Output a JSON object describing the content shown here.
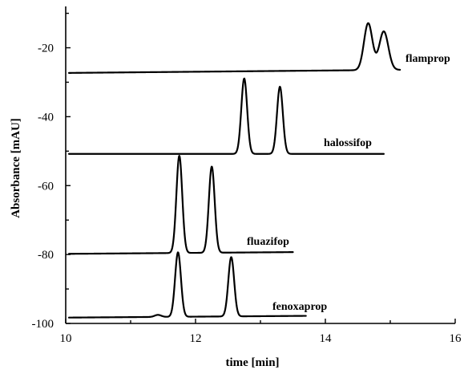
{
  "chart_data": {
    "type": "line",
    "title": "",
    "xlabel": "time [min]",
    "ylabel": "Absorbance [mAU]",
    "xlim": [
      10,
      16
    ],
    "ylim": [
      -100,
      -8
    ],
    "xticks": [
      10,
      12,
      14,
      16
    ],
    "yticks": [
      -100,
      -80,
      -60,
      -40,
      -20
    ],
    "grid": false,
    "legend": "none",
    "series": [
      {
        "name": "flamprop",
        "color": "#000000",
        "x_start": 10.05,
        "x_end": 15.15,
        "baseline_start": -27.3,
        "baseline_end": -26.4,
        "peaks": [
          {
            "x": 14.66,
            "height": 13.6,
            "width": 0.065
          },
          {
            "x": 14.9,
            "height": 11.2,
            "width": 0.07
          }
        ]
      },
      {
        "name": "halossifop",
        "color": "#000000",
        "x_start": 10.05,
        "x_end": 14.9,
        "baseline_start": -50.8,
        "baseline_end": -50.8,
        "peaks": [
          {
            "x": 12.75,
            "height": 21.9,
            "width": 0.045
          },
          {
            "x": 13.3,
            "height": 19.5,
            "width": 0.045
          }
        ]
      },
      {
        "name": "fluazifop",
        "color": "#000000",
        "x_start": 10.05,
        "x_end": 13.5,
        "baseline_start": -79.8,
        "baseline_end": -79.3,
        "peaks": [
          {
            "x": 11.75,
            "height": 28.2,
            "width": 0.045
          },
          {
            "x": 12.25,
            "height": 25.0,
            "width": 0.045
          }
        ]
      },
      {
        "name": "fenoxaprop",
        "color": "#000000",
        "x_start": 10.05,
        "x_end": 13.7,
        "baseline_start": -98.3,
        "baseline_end": -97.8,
        "peaks": [
          {
            "x": 11.73,
            "height": 18.7,
            "width": 0.045
          },
          {
            "x": 12.55,
            "height": 17.2,
            "width": 0.045
          },
          {
            "x": 11.42,
            "height": 0.6,
            "width": 0.05
          }
        ]
      }
    ]
  }
}
